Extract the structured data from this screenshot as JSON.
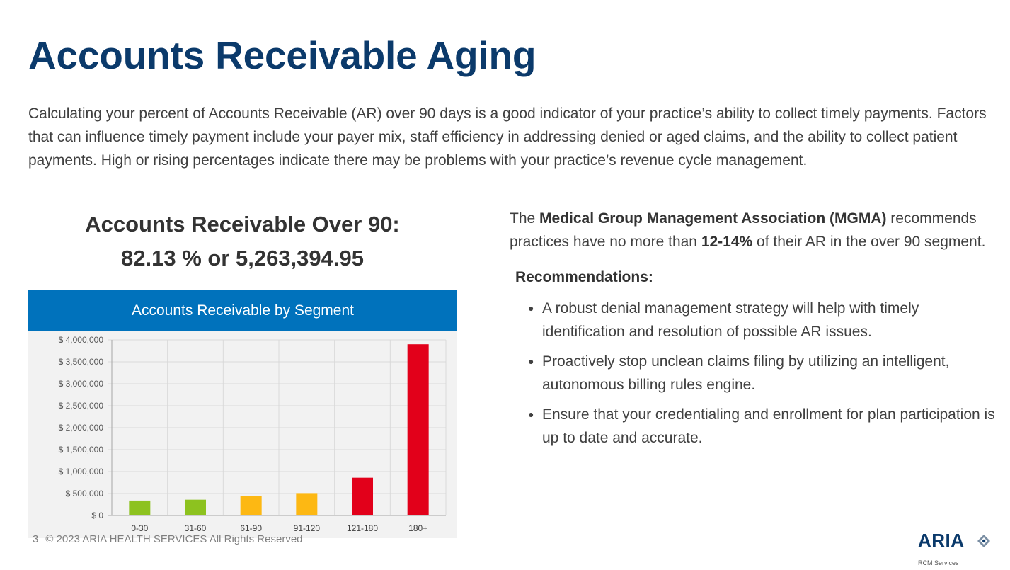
{
  "title": "Accounts Receivable Aging",
  "intro": "Calculating your percent of Accounts Receivable (AR) over 90 days is a good indicator of your practice’s ability to collect timely payments. Factors that can influence timely payment include your payer mix, staff efficiency in addressing denied or aged claims, and the ability to collect patient payments. High or rising percentages indicate there may be problems with your practice’s revenue cycle management.",
  "headline": {
    "line1": "Accounts Receivable Over 90:",
    "line2": "82.13 % or 5,263,394.95"
  },
  "chart_data": {
    "type": "bar",
    "title": "Accounts Receivable by Segment",
    "categories": [
      "0-30",
      "31-60",
      "61-90",
      "91-120",
      "121-180",
      "180+"
    ],
    "values": [
      340000,
      360000,
      450000,
      510000,
      860000,
      3900000
    ],
    "bar_colors": [
      "#8dc21f",
      "#8dc21f",
      "#fdb813",
      "#fdb813",
      "#e2001a",
      "#e2001a"
    ],
    "ylim": [
      0,
      4000000
    ],
    "ytick_values": [
      0,
      500000,
      1000000,
      1500000,
      2000000,
      2500000,
      3000000,
      3500000,
      4000000
    ],
    "ytick_labels": [
      "$ 0",
      "$ 500,000",
      "$ 1,000,000",
      "$ 1,500,000",
      "$ 2,000,000",
      "$ 2,500,000",
      "$ 3,000,000",
      "$ 3,500,000",
      "$ 4,000,000"
    ],
    "xlabel": "",
    "ylabel": "",
    "grid": true,
    "header_color": "#0072bc"
  },
  "mgma": {
    "pre": "The ",
    "org_bold": "Medical Group Management Association (MGMA)",
    "mid": " recommends practices have no more than ",
    "pct_bold": "12-14%",
    "post": " of their AR in the over 90 segment."
  },
  "recommendations": {
    "heading": "Recommendations:",
    "items": [
      "A robust denial management strategy will help with timely identification and resolution of possible AR issues.",
      "Proactively stop unclean claims filing by utilizing an intelligent, autonomous billing rules engine.",
      "Ensure that your credentialing and enrollment for plan participation is up to date and accurate."
    ]
  },
  "footer": {
    "page_number": "3",
    "copyright": "© 2023 ARIA HEALTH SERVICES All Rights Reserved"
  },
  "logo": {
    "name": "ARIA",
    "tagline": "RCM Services",
    "mark_icon": "diamond-icon"
  },
  "colors": {
    "title": "#0b3a6b",
    "accent": "#0072bc"
  }
}
